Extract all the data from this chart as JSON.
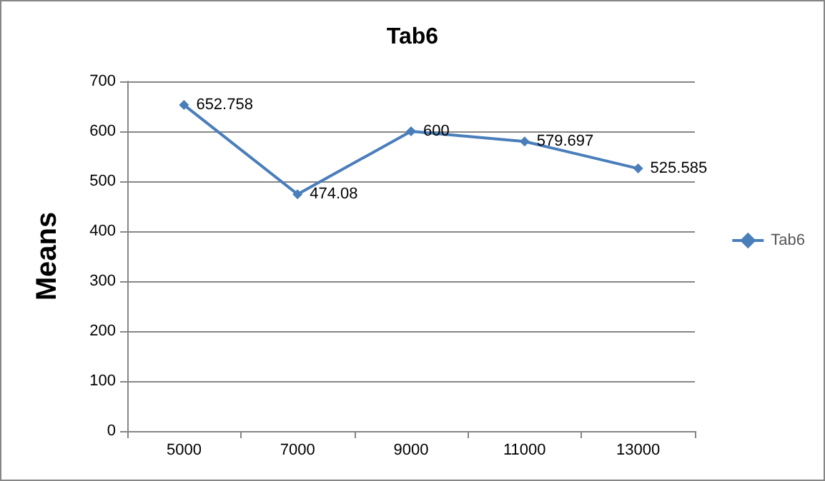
{
  "chart_data": {
    "type": "line",
    "title": "Tab6",
    "ylabel": "Means",
    "categories": [
      "5000",
      "7000",
      "9000",
      "11000",
      "13000"
    ],
    "series": [
      {
        "name": "Tab6",
        "color": "#4a7ebb",
        "values": [
          652.758,
          474.08,
          600,
          579.697,
          525.585
        ]
      }
    ],
    "ylim": [
      0,
      700
    ],
    "yticks": [
      0,
      100,
      200,
      300,
      400,
      500,
      600,
      700
    ],
    "grid": "y",
    "legend": "right",
    "marker": "diamond",
    "data_labels": true
  }
}
